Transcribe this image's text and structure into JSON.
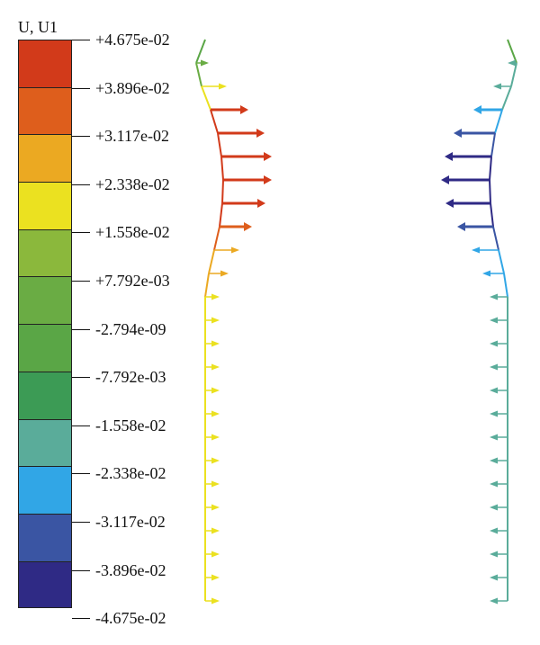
{
  "legend": {
    "title": "U, U1",
    "labels": [
      "+4.675e-02",
      "+3.896e-02",
      "+3.117e-02",
      "+2.338e-02",
      "+1.558e-02",
      "+7.792e-03",
      "-2.794e-09",
      "-7.792e-03",
      "-1.558e-02",
      "-2.338e-02",
      "-3.117e-02",
      "-3.896e-02",
      "-4.675e-02"
    ],
    "colors": [
      "#d23a1a",
      "#de5e1c",
      "#eba922",
      "#ebe120",
      "#8bb83c",
      "#6aac44",
      "#5aa646",
      "#3c9b55",
      "#5aac9a",
      "#31a6e6",
      "#3a55a3",
      "#2f2a85"
    ]
  },
  "left_profile": {
    "arrows": [
      {
        "len": 6,
        "color": "#5aa646"
      },
      {
        "len": 14,
        "color": "#6aac44"
      },
      {
        "len": 28,
        "color": "#ebe120"
      },
      {
        "len": 42,
        "color": "#d23a1a"
      },
      {
        "len": 52,
        "color": "#d23a1a"
      },
      {
        "len": 56,
        "color": "#d23a1a"
      },
      {
        "len": 54,
        "color": "#d23a1a"
      },
      {
        "len": 48,
        "color": "#d23a1a"
      },
      {
        "len": 36,
        "color": "#de5e1c"
      },
      {
        "len": 28,
        "color": "#eba922"
      },
      {
        "len": 22,
        "color": "#eba922"
      },
      {
        "len": 16,
        "color": "#ebe120"
      },
      {
        "len": 16,
        "color": "#ebe120"
      },
      {
        "len": 16,
        "color": "#ebe120"
      },
      {
        "len": 16,
        "color": "#ebe120"
      },
      {
        "len": 16,
        "color": "#ebe120"
      },
      {
        "len": 16,
        "color": "#ebe120"
      },
      {
        "len": 16,
        "color": "#ebe120"
      },
      {
        "len": 16,
        "color": "#ebe120"
      },
      {
        "len": 16,
        "color": "#ebe120"
      },
      {
        "len": 16,
        "color": "#ebe120"
      },
      {
        "len": 16,
        "color": "#ebe120"
      },
      {
        "len": 16,
        "color": "#ebe120"
      },
      {
        "len": 16,
        "color": "#ebe120"
      },
      {
        "len": 16,
        "color": "#ebe120"
      }
    ]
  },
  "right_profile": {
    "arrows": [
      {
        "len": 6,
        "color": "#5aa646"
      },
      {
        "len": 10,
        "color": "#5aac9a"
      },
      {
        "len": 20,
        "color": "#5aac9a"
      },
      {
        "len": 32,
        "color": "#31a6e6"
      },
      {
        "len": 46,
        "color": "#3a55a3"
      },
      {
        "len": 52,
        "color": "#2f2a85"
      },
      {
        "len": 54,
        "color": "#2f2a85"
      },
      {
        "len": 50,
        "color": "#2f2a85"
      },
      {
        "len": 40,
        "color": "#3a55a3"
      },
      {
        "len": 30,
        "color": "#31a6e6"
      },
      {
        "len": 24,
        "color": "#31a6e6"
      },
      {
        "len": 20,
        "color": "#5aac9a"
      },
      {
        "len": 20,
        "color": "#5aac9a"
      },
      {
        "len": 20,
        "color": "#5aac9a"
      },
      {
        "len": 20,
        "color": "#5aac9a"
      },
      {
        "len": 20,
        "color": "#5aac9a"
      },
      {
        "len": 20,
        "color": "#5aac9a"
      },
      {
        "len": 20,
        "color": "#5aac9a"
      },
      {
        "len": 20,
        "color": "#5aac9a"
      },
      {
        "len": 20,
        "color": "#5aac9a"
      },
      {
        "len": 20,
        "color": "#5aac9a"
      },
      {
        "len": 20,
        "color": "#5aac9a"
      },
      {
        "len": 20,
        "color": "#5aac9a"
      },
      {
        "len": 20,
        "color": "#5aac9a"
      },
      {
        "len": 20,
        "color": "#5aac9a"
      }
    ]
  }
}
